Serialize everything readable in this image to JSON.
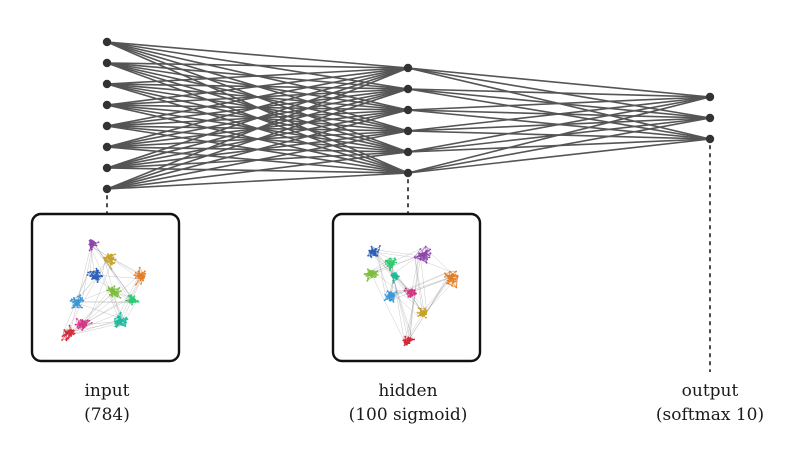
{
  "diagram": {
    "colors": {
      "edge": "#555555",
      "node": "#333333",
      "box_border": "#111111",
      "dashed": "#222222"
    },
    "palette": [
      "#d62839",
      "#e67e22",
      "#c9a227",
      "#7fbf3f",
      "#2ecc71",
      "#1abc9c",
      "#3498db",
      "#2c5fb8",
      "#8e44ad",
      "#d63384"
    ],
    "layers": [
      {
        "name": "input",
        "nodes": 8,
        "label": "input",
        "sublabel": "(784)",
        "has_embedding": true
      },
      {
        "name": "hidden",
        "nodes": 6,
        "label": "hidden",
        "sublabel": "(100 sigmoid)",
        "has_embedding": true
      },
      {
        "name": "output",
        "nodes": 3,
        "label": "output",
        "sublabel": "(softmax 10)",
        "has_embedding": false
      }
    ]
  }
}
